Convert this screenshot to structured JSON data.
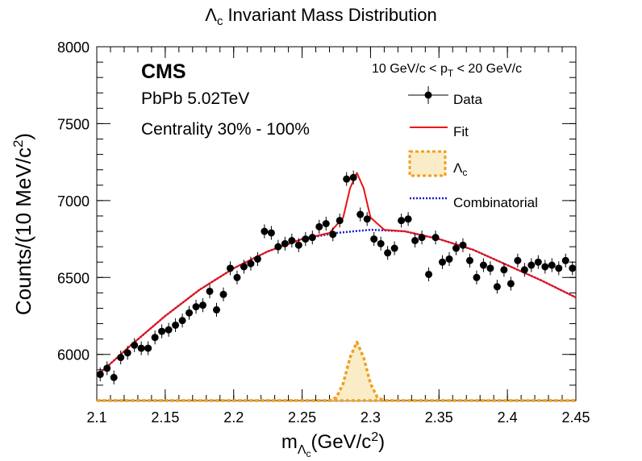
{
  "chart_data": {
    "type": "scatter",
    "title": "Λc Invariant Mass Distribution",
    "title_symbol": "Λ",
    "title_sub": "c",
    "title_rest": " Invariant Mass Distribution",
    "xlabel_pre": "m",
    "xlabel_sub": "Λ",
    "xlabel_subsub": "c",
    "xlabel_post": "(GeV/c",
    "xlabel_sup": "2",
    "xlabel_end": ")",
    "ylabel_main": "Counts/(10 MeV/c",
    "ylabel_sup": "2",
    "ylabel_end": ")",
    "xlim": [
      2.1,
      2.45
    ],
    "ylim": [
      5700,
      8000
    ],
    "xticks": [
      2.1,
      2.15,
      2.2,
      2.25,
      2.3,
      2.35,
      2.4,
      2.45
    ],
    "xtick_labels": [
      "2.1",
      "2.15",
      "2.2",
      "2.25",
      "2.3",
      "2.35",
      "2.4",
      "2.45"
    ],
    "yticks": [
      6000,
      6500,
      7000,
      7500,
      8000
    ],
    "ytick_labels": [
      "6000",
      "6500",
      "7000",
      "7500",
      "8000"
    ],
    "grid": false,
    "annotations": {
      "experiment": "CMS",
      "system": "PbPb 5.02TeV",
      "centrality": "Centrality 30% - 100%",
      "pt_pre": "10 GeV/c < p",
      "pt_sub": "T",
      "pt_post": " < 20 GeV/c"
    },
    "legend": {
      "placement": "top-right",
      "entries": [
        {
          "key": "data",
          "label": "Data",
          "label_sub": ""
        },
        {
          "key": "fit",
          "label": "Fit",
          "label_sub": ""
        },
        {
          "key": "signal",
          "label": "Λ",
          "label_sub": "c"
        },
        {
          "key": "combinatorial",
          "label": "Combinatorial",
          "label_sub": ""
        }
      ]
    },
    "colors": {
      "data": "#000000",
      "fit": "#ee1111",
      "signal": "#f0a020",
      "signal_fill": "#fbecc8",
      "combinatorial": "#1a1acc"
    },
    "data": {
      "x": [
        2.1025,
        2.1075,
        2.1125,
        2.1175,
        2.1225,
        2.1275,
        2.1325,
        2.1375,
        2.1425,
        2.1475,
        2.1525,
        2.1575,
        2.1625,
        2.1675,
        2.1725,
        2.1775,
        2.1825,
        2.1875,
        2.1925,
        2.1975,
        2.2025,
        2.2075,
        2.2125,
        2.2175,
        2.2225,
        2.2275,
        2.2325,
        2.2375,
        2.2425,
        2.2475,
        2.2525,
        2.2575,
        2.2625,
        2.2675,
        2.2725,
        2.2775,
        2.2825,
        2.2875,
        2.2925,
        2.2975,
        2.3025,
        2.3075,
        2.3125,
        2.3175,
        2.3225,
        2.3275,
        2.3325,
        2.3375,
        2.3425,
        2.3475,
        2.3525,
        2.3575,
        2.3625,
        2.3675,
        2.3725,
        2.3775,
        2.3825,
        2.3875,
        2.3925,
        2.3975,
        2.4025,
        2.4075,
        2.4125,
        2.4175,
        2.4225,
        2.4275,
        2.4325,
        2.4375,
        2.4425,
        2.4475
      ],
      "y": [
        5870,
        5910,
        5850,
        5980,
        6010,
        6060,
        6040,
        6040,
        6110,
        6150,
        6160,
        6190,
        6220,
        6270,
        6310,
        6320,
        6410,
        6290,
        6390,
        6560,
        6500,
        6570,
        6590,
        6620,
        6800,
        6790,
        6700,
        6720,
        6740,
        6710,
        6750,
        6760,
        6830,
        6850,
        6780,
        6870,
        7140,
        7150,
        6910,
        6880,
        6750,
        6720,
        6660,
        6690,
        6870,
        6880,
        6740,
        6760,
        6520,
        6760,
        6600,
        6620,
        6690,
        6710,
        6610,
        6500,
        6580,
        6560,
        6440,
        6550,
        6460,
        6610,
        6550,
        6580,
        6600,
        6570,
        6580,
        6560,
        6610,
        6560
      ],
      "errors": [
        45,
        45,
        45,
        45,
        45,
        45,
        45,
        45,
        45,
        45,
        45,
        45,
        45,
        45,
        45,
        45,
        45,
        45,
        45,
        45,
        45,
        45,
        45,
        45,
        45,
        45,
        45,
        45,
        45,
        45,
        45,
        45,
        45,
        45,
        45,
        45,
        45,
        45,
        45,
        45,
        45,
        45,
        45,
        45,
        45,
        45,
        45,
        45,
        45,
        45,
        45,
        45,
        45,
        45,
        45,
        45,
        45,
        45,
        45,
        45,
        45,
        45,
        45,
        45,
        45,
        45,
        45,
        45,
        45,
        45
      ]
    },
    "combinatorial": {
      "x": [
        2.1,
        2.125,
        2.15,
        2.175,
        2.2,
        2.225,
        2.25,
        2.275,
        2.3,
        2.325,
        2.35,
        2.375,
        2.4,
        2.425,
        2.45
      ],
      "y": [
        5860,
        6060,
        6250,
        6420,
        6560,
        6670,
        6750,
        6790,
        6810,
        6800,
        6750,
        6680,
        6580,
        6480,
        6370
      ]
    },
    "fit": {
      "x": [
        2.1,
        2.125,
        2.15,
        2.175,
        2.2,
        2.225,
        2.25,
        2.27,
        2.28,
        2.285,
        2.29,
        2.295,
        2.3,
        2.31,
        2.325,
        2.35,
        2.375,
        2.4,
        2.425,
        2.45
      ],
      "y": [
        5860,
        6060,
        6250,
        6420,
        6560,
        6670,
        6750,
        6790,
        6890,
        7080,
        7180,
        7080,
        6890,
        6810,
        6800,
        6750,
        6680,
        6580,
        6480,
        6370
      ]
    },
    "signal": {
      "x": [
        2.1,
        2.27,
        2.275,
        2.28,
        2.285,
        2.29,
        2.295,
        2.3,
        2.305,
        2.31,
        2.45
      ],
      "y": [
        5700,
        5700,
        5720,
        5810,
        5980,
        6080,
        5980,
        5810,
        5720,
        5700,
        5700
      ]
    }
  }
}
